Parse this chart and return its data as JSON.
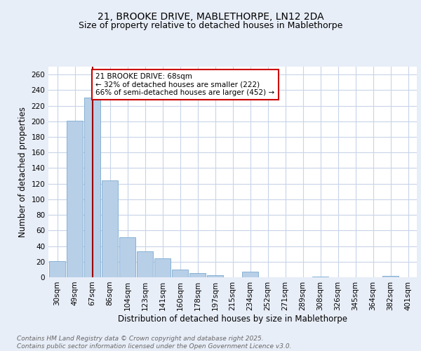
{
  "title1": "21, BROOKE DRIVE, MABLETHORPE, LN12 2DA",
  "title2": "Size of property relative to detached houses in Mablethorpe",
  "xlabel": "Distribution of detached houses by size in Mablethorpe",
  "ylabel": "Number of detached properties",
  "categories": [
    "30sqm",
    "49sqm",
    "67sqm",
    "86sqm",
    "104sqm",
    "123sqm",
    "141sqm",
    "160sqm",
    "178sqm",
    "197sqm",
    "215sqm",
    "234sqm",
    "252sqm",
    "271sqm",
    "289sqm",
    "308sqm",
    "326sqm",
    "345sqm",
    "364sqm",
    "382sqm",
    "401sqm"
  ],
  "values": [
    21,
    201,
    230,
    124,
    51,
    33,
    24,
    10,
    5,
    3,
    0,
    7,
    0,
    0,
    0,
    1,
    0,
    0,
    0,
    2,
    0
  ],
  "bar_color": "#b8cfe8",
  "bar_edgecolor": "#7aaad0",
  "grid_color": "#c8d4e8",
  "background_color": "#e8eef8",
  "plot_bg_color": "#ffffff",
  "vline_x_index": 2,
  "vline_color": "#990000",
  "annotation_text": "21 BROOKE DRIVE: 68sqm\n← 32% of detached houses are smaller (222)\n66% of semi-detached houses are larger (452) →",
  "annotation_box_facecolor": "#ffffff",
  "annotation_box_edgecolor": "#cc0000",
  "ylim": [
    0,
    270
  ],
  "yticks": [
    0,
    20,
    40,
    60,
    80,
    100,
    120,
    140,
    160,
    180,
    200,
    220,
    240,
    260
  ],
  "footer": "Contains HM Land Registry data © Crown copyright and database right 2025.\nContains public sector information licensed under the Open Government Licence v3.0.",
  "title_fontsize": 10,
  "subtitle_fontsize": 9,
  "label_fontsize": 8.5,
  "tick_fontsize": 7.5,
  "annotation_fontsize": 7.5,
  "footer_fontsize": 6.5
}
